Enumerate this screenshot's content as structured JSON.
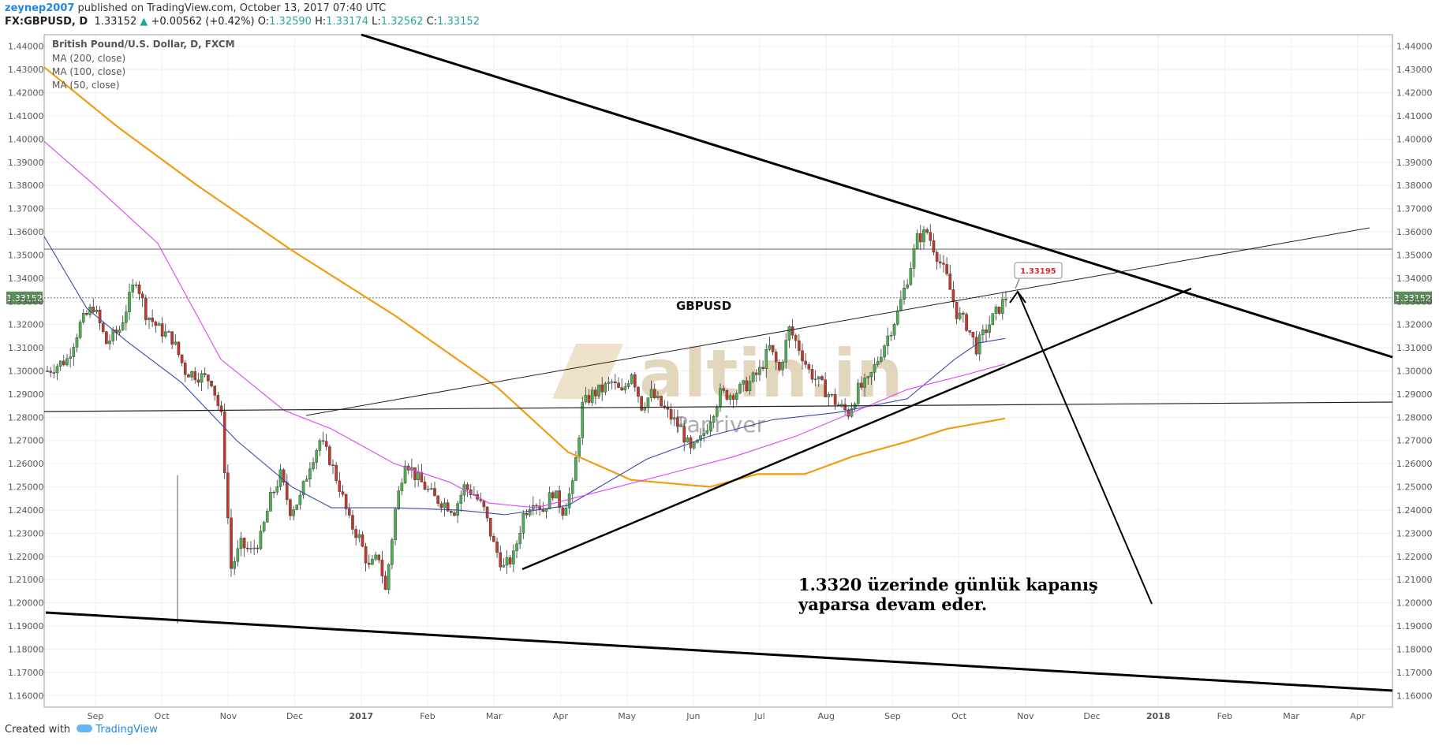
{
  "header": {
    "author": "zeynep2007",
    "published_text": " published on TradingView.com, October 13, 2017 07:40 UTC",
    "symbol": "FX:GBPUSD, D",
    "last": "1.33152",
    "arrow": "▲",
    "change": "+0.00562 (+0.42%)",
    "open_label": "O:",
    "open": "1.32590",
    "high_label": "H:",
    "high": "1.33174",
    "low_label": "L:",
    "low": "1.32562",
    "close_label": "C:",
    "close": "1.33152"
  },
  "legend": {
    "title": "British Pound/U.S. Dollar, D, FXCM",
    "ma1": "MA (200, close)",
    "ma2": "MA (100, close)",
    "ma3": "MA (50, close)"
  },
  "annotations": {
    "label": "GBPUSD",
    "note_line1": "1.3320 üzerinde günlük kapanış",
    "note_line2": "yaparsa devam eder.",
    "callout": "1.33195",
    "watermark_brand": "altin.in",
    "watermark_sub": "Panriver"
  },
  "footer": {
    "created_with": "Created with",
    "brand": "TradingView"
  },
  "colors": {
    "bull": "#4caf50",
    "bear": "#c0392b",
    "ma200": "#f39c12",
    "ma100": "#3949ab",
    "ma50": "#e040fb",
    "price_badge": "#5b8c5a",
    "callout_text": "#d32f2f"
  },
  "chart_data": {
    "type": "candlestick",
    "ylim": [
      1.155,
      1.445
    ],
    "y_ticks": [
      "1.44000",
      "1.43000",
      "1.42000",
      "1.41000",
      "1.40000",
      "1.39000",
      "1.38000",
      "1.37000",
      "1.36000",
      "1.35000",
      "1.34000",
      "1.33000",
      "1.32000",
      "1.31000",
      "1.30000",
      "1.29000",
      "1.28000",
      "1.27000",
      "1.26000",
      "1.25000",
      "1.24000",
      "1.23000",
      "1.22000",
      "1.21000",
      "1.20000",
      "1.19000",
      "1.18000",
      "1.17000",
      "1.16000"
    ],
    "x_ticks": [
      "Sep",
      "Oct",
      "Nov",
      "Dec",
      "2017",
      "Feb",
      "Mar",
      "Apr",
      "May",
      "Jun",
      "Jul",
      "Aug",
      "Sep",
      "Oct",
      "Nov",
      "Dec",
      "2018",
      "Feb",
      "Mar",
      "Apr"
    ],
    "last_price": "1.33152",
    "ohlc_close_path": [
      [
        0,
        1.3
      ],
      [
        6,
        1.305
      ],
      [
        10,
        1.32
      ],
      [
        14,
        1.328
      ],
      [
        18,
        1.312
      ],
      [
        22,
        1.318
      ],
      [
        27,
        1.34
      ],
      [
        30,
        1.325
      ],
      [
        34,
        1.318
      ],
      [
        38,
        1.314
      ],
      [
        42,
        1.3
      ],
      [
        46,
        1.298
      ],
      [
        50,
        1.296
      ],
      [
        53,
        1.28
      ],
      [
        56,
        1.215
      ],
      [
        59,
        1.225
      ],
      [
        62,
        1.222
      ],
      [
        65,
        1.228
      ],
      [
        68,
        1.245
      ],
      [
        71,
        1.255
      ],
      [
        74,
        1.24
      ],
      [
        77,
        1.245
      ],
      [
        80,
        1.26
      ],
      [
        83,
        1.27
      ],
      [
        86,
        1.262
      ],
      [
        89,
        1.25
      ],
      [
        92,
        1.235
      ],
      [
        95,
        1.228
      ],
      [
        98,
        1.215
      ],
      [
        101,
        1.22
      ],
      [
        103,
        1.205
      ],
      [
        106,
        1.24
      ],
      [
        109,
        1.262
      ],
      [
        112,
        1.255
      ],
      [
        115,
        1.25
      ],
      [
        118,
        1.245
      ],
      [
        121,
        1.243
      ],
      [
        124,
        1.24
      ],
      [
        127,
        1.25
      ],
      [
        130,
        1.247
      ],
      [
        133,
        1.24
      ],
      [
        136,
        1.225
      ],
      [
        139,
        1.215
      ],
      [
        142,
        1.22
      ],
      [
        145,
        1.238
      ],
      [
        148,
        1.245
      ],
      [
        151,
        1.24
      ],
      [
        154,
        1.248
      ],
      [
        157,
        1.24
      ],
      [
        160,
        1.25
      ],
      [
        163,
        1.285
      ],
      [
        166,
        1.29
      ],
      [
        169,
        1.292
      ],
      [
        172,
        1.295
      ],
      [
        175,
        1.29
      ],
      [
        178,
        1.3
      ],
      [
        181,
        1.285
      ],
      [
        184,
        1.29
      ],
      [
        187,
        1.285
      ],
      [
        190,
        1.28
      ],
      [
        193,
        1.275
      ],
      [
        196,
        1.265
      ],
      [
        199,
        1.27
      ],
      [
        202,
        1.28
      ],
      [
        205,
        1.29
      ],
      [
        208,
        1.29
      ],
      [
        211,
        1.292
      ],
      [
        214,
        1.295
      ],
      [
        217,
        1.3
      ],
      [
        220,
        1.31
      ],
      [
        223,
        1.3
      ],
      [
        226,
        1.318
      ],
      [
        229,
        1.31
      ],
      [
        232,
        1.3
      ],
      [
        235,
        1.295
      ],
      [
        238,
        1.29
      ],
      [
        241,
        1.285
      ],
      [
        244,
        1.282
      ],
      [
        247,
        1.292
      ],
      [
        250,
        1.295
      ],
      [
        253,
        1.305
      ],
      [
        256,
        1.315
      ],
      [
        259,
        1.325
      ],
      [
        262,
        1.34
      ],
      [
        265,
        1.357
      ],
      [
        268,
        1.36
      ],
      [
        271,
        1.35
      ],
      [
        274,
        1.34
      ],
      [
        277,
        1.325
      ],
      [
        280,
        1.32
      ],
      [
        283,
        1.31
      ],
      [
        286,
        1.318
      ],
      [
        289,
        1.325
      ],
      [
        292,
        1.3315
      ]
    ],
    "series": [
      {
        "name": "MA (200, close)"
      },
      {
        "name": "MA (100, close)"
      },
      {
        "name": "MA (50, close)"
      }
    ]
  }
}
